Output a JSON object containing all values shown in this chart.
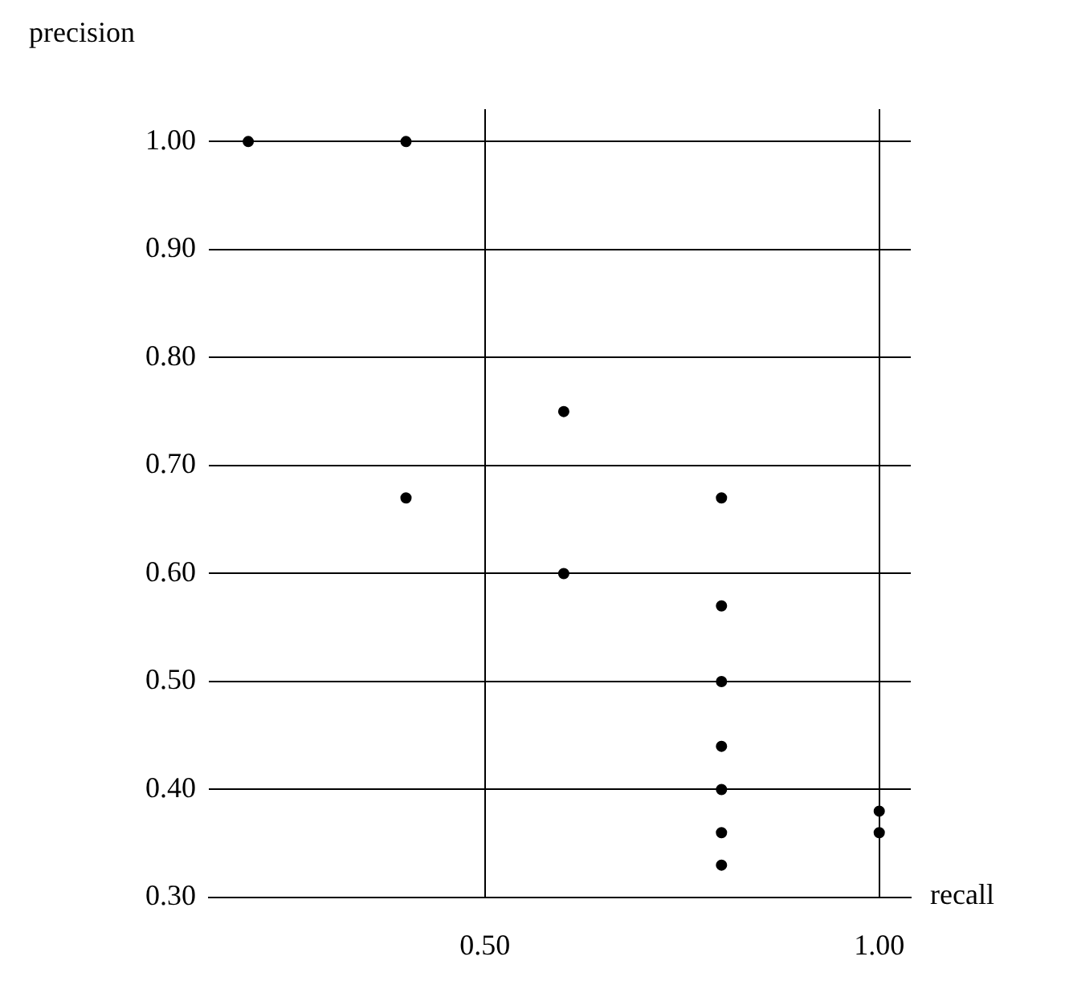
{
  "chart_data": {
    "type": "scatter",
    "xlabel": "recall",
    "ylabel": "precision",
    "x": [
      0.2,
      0.4,
      0.4,
      0.6,
      0.6,
      0.8,
      0.8,
      0.8,
      0.8,
      0.8,
      0.8,
      0.8,
      1.0,
      1.0
    ],
    "values": [
      1.0,
      1.0,
      0.67,
      0.75,
      0.6,
      0.67,
      0.57,
      0.5,
      0.44,
      0.4,
      0.36,
      0.33,
      0.38,
      0.36
    ],
    "color": "#000000",
    "marker": "circle",
    "xlim": [
      0.15,
      1.04
    ],
    "xticks": [
      {
        "value": 0.5,
        "label": "0.50"
      },
      {
        "value": 1.0,
        "label": "1.00"
      }
    ],
    "ylim": [
      0.3,
      1.03
    ],
    "yticks": [
      {
        "value": 0.3,
        "label": "0.30"
      },
      {
        "value": 0.4,
        "label": "0.40"
      },
      {
        "value": 0.5,
        "label": "0.50"
      },
      {
        "value": 0.6,
        "label": "0.60"
      },
      {
        "value": 0.7,
        "label": "0.70"
      },
      {
        "value": 0.8,
        "label": "0.80"
      },
      {
        "value": 0.9,
        "label": "0.90"
      },
      {
        "value": 1.0,
        "label": "1.00"
      }
    ],
    "grid": true
  }
}
